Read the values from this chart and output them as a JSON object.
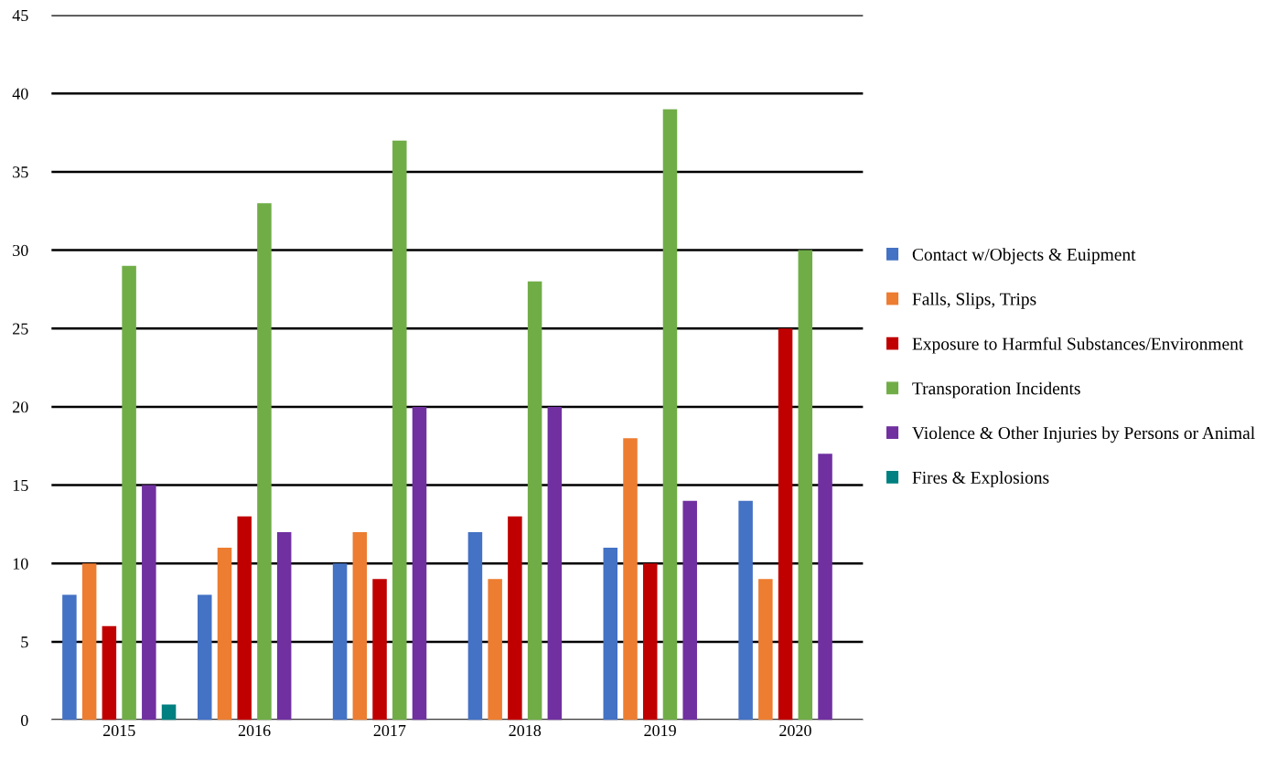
{
  "chart_data": {
    "type": "bar",
    "categories": [
      "2015",
      "2016",
      "2017",
      "2018",
      "2019",
      "2020"
    ],
    "series": [
      {
        "name": "Contact w/Objects & Euipment",
        "color": "#4472c4",
        "values": [
          8,
          8,
          10,
          12,
          11,
          14
        ]
      },
      {
        "name": "Falls, Slips, Trips",
        "color": "#ed7d31",
        "values": [
          10,
          11,
          12,
          9,
          18,
          9
        ]
      },
      {
        "name": "Exposure to Harmful Substances/Environment",
        "color": "#c00000",
        "values": [
          6,
          13,
          9,
          13,
          10,
          25
        ]
      },
      {
        "name": "Transporation Incidents",
        "color": "#70ad47",
        "values": [
          29,
          33,
          37,
          28,
          39,
          30
        ]
      },
      {
        "name": "Violence & Other Injuries by Persons or Animal",
        "color": "#7030a0",
        "values": [
          15,
          12,
          20,
          20,
          14,
          17
        ]
      },
      {
        "name": "Fires & Explosions",
        "color": "#008080",
        "values": [
          1,
          null,
          null,
          null,
          null,
          null
        ]
      }
    ],
    "ylim": [
      0,
      45
    ],
    "yticks": [
      0,
      5,
      10,
      15,
      20,
      25,
      30,
      35,
      40,
      45
    ],
    "grid": "y",
    "legend": "right"
  }
}
